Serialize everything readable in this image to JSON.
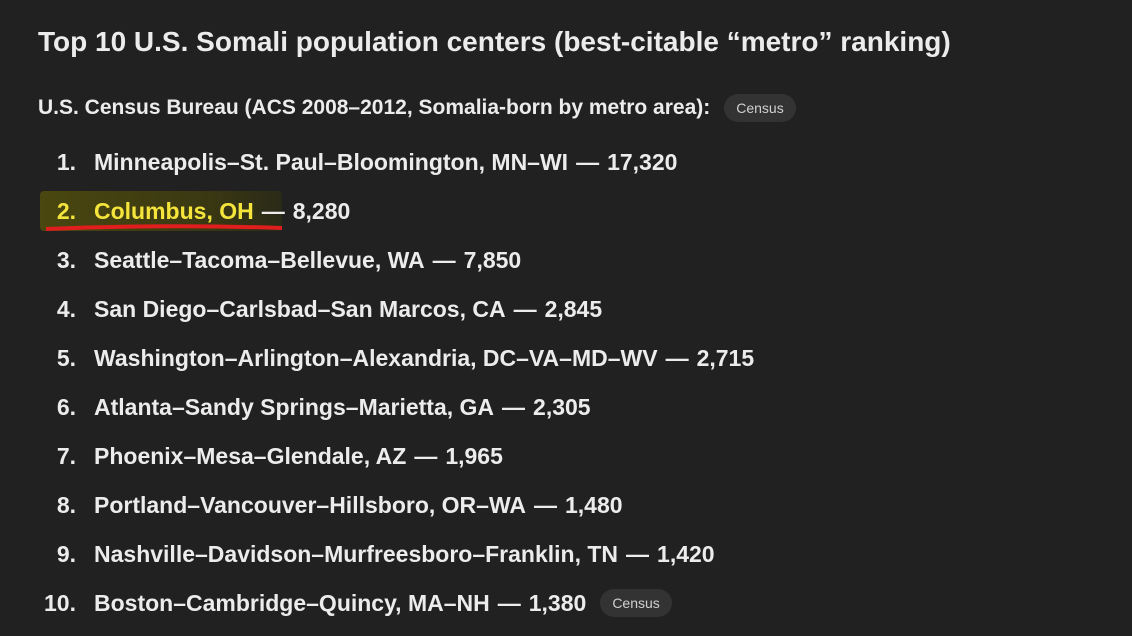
{
  "heading": "Top 10 U.S. Somali population centers (best-citable “metro” ranking)",
  "intro": {
    "text": "U.S. Census Bureau (ACS 2008–2012, Somalia-born by metro area):",
    "badge": "Census"
  },
  "list": {
    "separator": "—",
    "items": [
      {
        "marker": "1.",
        "place": "Minneapolis–St. Paul–Bloomington, MN–WI",
        "count": "17,320"
      },
      {
        "marker": "2.",
        "place": "Columbus, OH",
        "count": "8,280",
        "highlighted": true
      },
      {
        "marker": "3.",
        "place": "Seattle–Tacoma–Bellevue, WA",
        "count": "7,850"
      },
      {
        "marker": "4.",
        "place": "San Diego–Carlsbad–San Marcos, CA",
        "count": "2,845"
      },
      {
        "marker": "5.",
        "place": "Washington–Arlington–Alexandria, DC–VA–MD–WV",
        "count": "2,715"
      },
      {
        "marker": "6.",
        "place": "Atlanta–Sandy Springs–Marietta, GA",
        "count": "2,305"
      },
      {
        "marker": "7.",
        "place": "Phoenix–Mesa–Glendale, AZ",
        "count": "1,965"
      },
      {
        "marker": "8.",
        "place": "Portland–Vancouver–Hillsboro, OR–WA",
        "count": "1,480"
      },
      {
        "marker": "9.",
        "place": "Nashville–Davidson–Murfreesboro–Franklin, TN",
        "count": "1,420"
      },
      {
        "marker": "10.",
        "place": "Boston–Cambridge–Quincy, MA–NH",
        "count": "1,380",
        "badge": "Census"
      }
    ]
  }
}
